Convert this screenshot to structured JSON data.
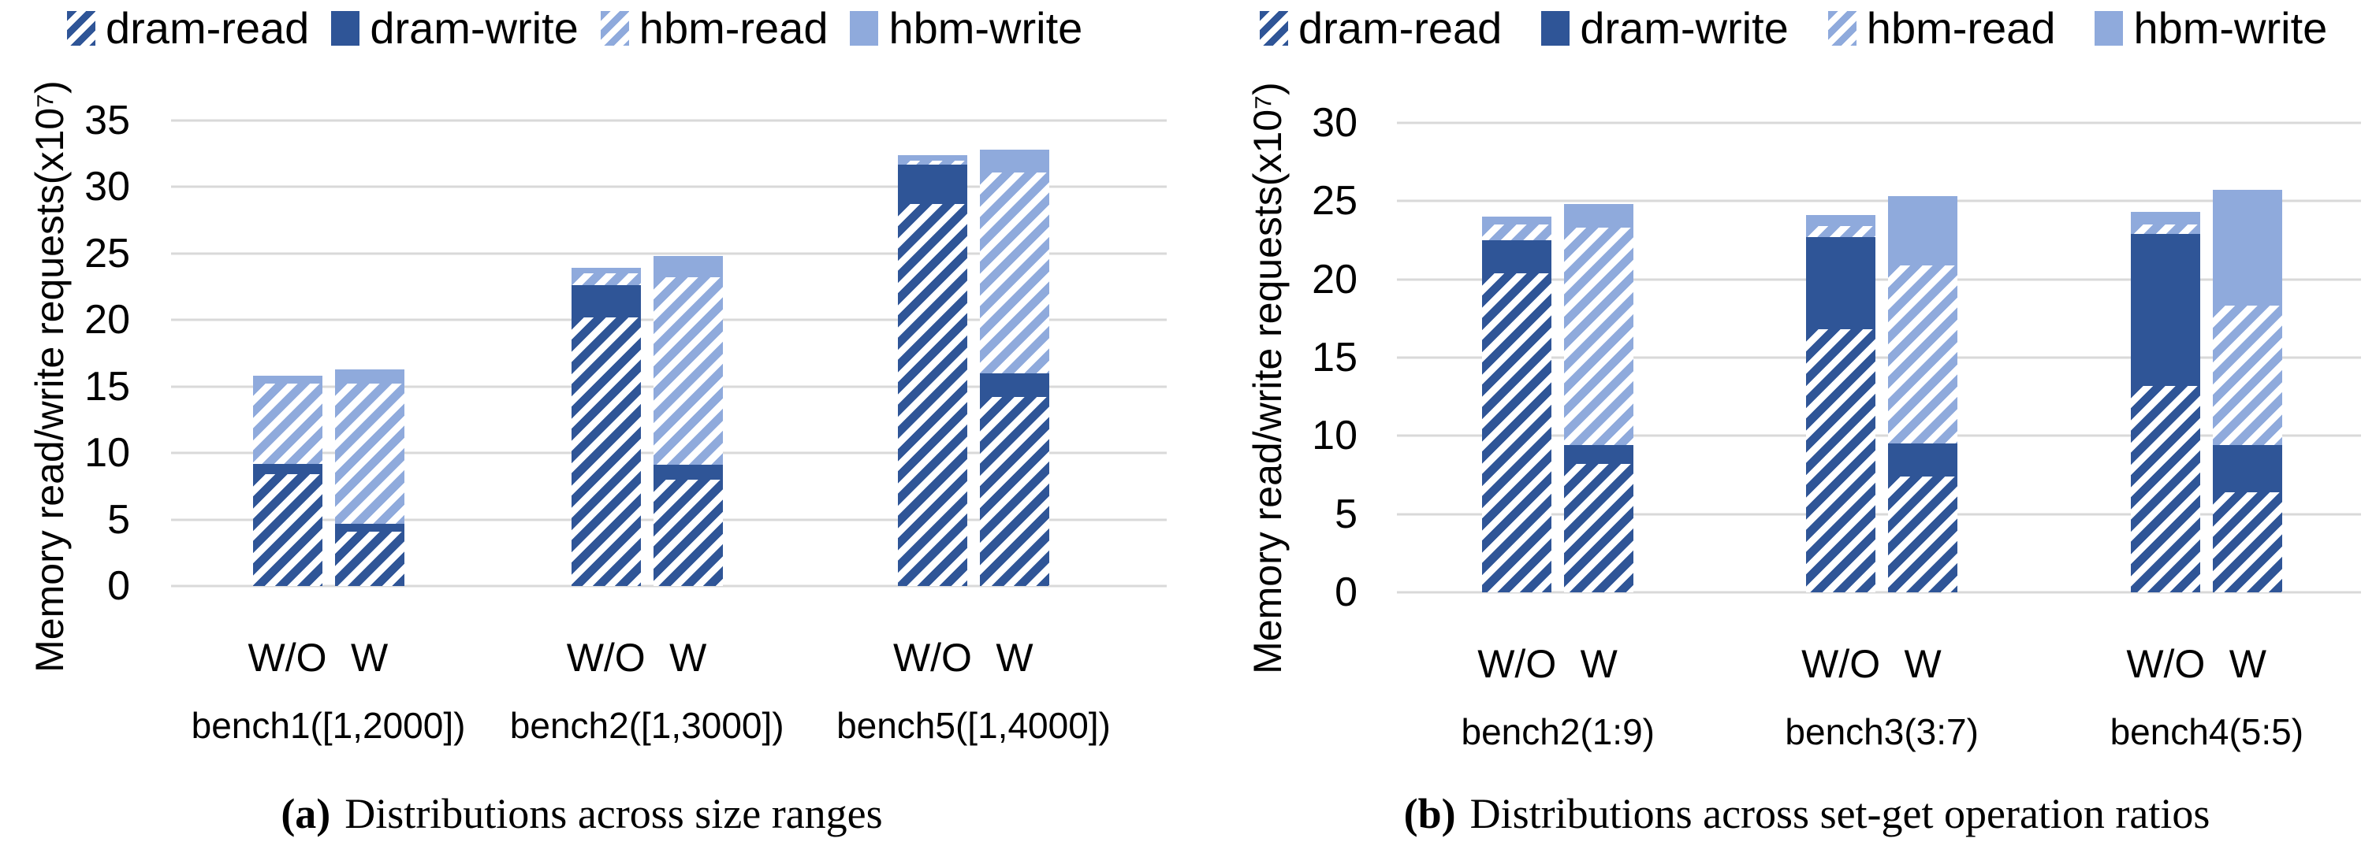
{
  "colors": {
    "dark_blue": "#2f5597",
    "light_blue": "#8faadc",
    "gridline": "#d9d9d9",
    "text": "#000000"
  },
  "legend": {
    "items": [
      {
        "label": "dram-read",
        "swatch": "dark-hatch"
      },
      {
        "label": "dram-write",
        "swatch": "dark-solid"
      },
      {
        "label": "hbm-read",
        "swatch": "light-hatch"
      },
      {
        "label": "hbm-write",
        "swatch": "light-solid"
      }
    ]
  },
  "chart_data": [
    {
      "id": "a",
      "type": "bar",
      "stacked": true,
      "caption_label": "(a)",
      "caption_text": "Distributions across size ranges",
      "ylabel": "Memory read/write requests(x10⁷)",
      "ylim": [
        0,
        35
      ],
      "yticks": [
        0,
        5,
        10,
        15,
        20,
        25,
        30,
        35
      ],
      "grid": true,
      "legend_position": "top-left",
      "series_names": [
        "dram-read",
        "dram-write",
        "hbm-read",
        "hbm-write"
      ],
      "groups": [
        {
          "label": "bench1([1,2000])",
          "center_pct": 15.8,
          "bars": [
            {
              "label": "W/O",
              "values": [
                8.4,
                0.8,
                6.0,
                0.6
              ]
            },
            {
              "label": "W",
              "values": [
                4.1,
                0.6,
                10.5,
                1.1
              ]
            }
          ]
        },
        {
          "label": "bench2([1,3000])",
          "center_pct": 47.8,
          "bars": [
            {
              "label": "W/O",
              "values": [
                20.2,
                2.4,
                0.9,
                0.4
              ]
            },
            {
              "label": "W",
              "values": [
                8.0,
                1.1,
                14.1,
                1.6
              ]
            }
          ]
        },
        {
          "label": "bench5([1,4000])",
          "center_pct": 80.6,
          "bars": [
            {
              "label": "W/O",
              "values": [
                28.7,
                3.0,
                0.3,
                0.4
              ]
            },
            {
              "label": "W",
              "values": [
                14.2,
                1.8,
                15.1,
                1.7
              ]
            }
          ]
        }
      ]
    },
    {
      "id": "b",
      "type": "bar",
      "stacked": true,
      "caption_label": "(b)",
      "caption_text": "Distributions across set-get operation ratios",
      "ylabel": "Memory read/write requests(x10⁷)",
      "ylim": [
        0,
        30
      ],
      "yticks": [
        0,
        5,
        10,
        15,
        20,
        25,
        30
      ],
      "grid": true,
      "legend_position": "top-left",
      "series_names": [
        "dram-read",
        "dram-write",
        "hbm-read",
        "hbm-write"
      ],
      "groups": [
        {
          "label": "bench2(1:9)",
          "center_pct": 16.7,
          "bars": [
            {
              "label": "W/O",
              "values": [
                20.4,
                2.1,
                1.0,
                0.5
              ]
            },
            {
              "label": "W",
              "values": [
                8.2,
                1.2,
                13.9,
                1.5
              ]
            }
          ]
        },
        {
          "label": "bench3(3:7)",
          "center_pct": 50.3,
          "bars": [
            {
              "label": "W/O",
              "values": [
                16.8,
                5.9,
                0.7,
                0.7
              ]
            },
            {
              "label": "W",
              "values": [
                7.4,
                2.1,
                11.4,
                4.4
              ]
            }
          ]
        },
        {
          "label": "bench4(5:5)",
          "center_pct": 84.0,
          "bars": [
            {
              "label": "W/O",
              "values": [
                13.2,
                9.7,
                0.6,
                0.8
              ]
            },
            {
              "label": "W",
              "values": [
                6.4,
                3.0,
                8.9,
                7.4
              ]
            }
          ]
        }
      ]
    }
  ]
}
